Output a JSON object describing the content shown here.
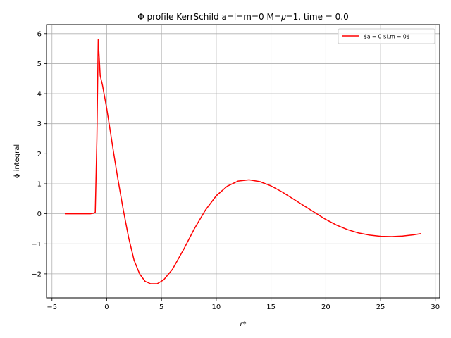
{
  "chart_data": {
    "type": "line",
    "title": "Φ profile KerrSchild a=l=m=0 M=𝜇=1, time = 0.0",
    "xlabel": "r*",
    "ylabel": "ϕ integral",
    "xlim": [
      -5.5,
      30.4
    ],
    "ylim": [
      -2.8,
      6.3
    ],
    "xticks": [
      -5,
      0,
      5,
      10,
      15,
      20,
      25,
      30
    ],
    "yticks": [
      -2,
      -1,
      0,
      1,
      2,
      3,
      4,
      5,
      6
    ],
    "grid": true,
    "legend_position": "top-right",
    "series": [
      {
        "name": "$a = 0 $l,m = 0$",
        "color": "#ff0000",
        "x": [
          -3.83,
          -3.0,
          -2.0,
          -1.5,
          -1.2,
          -1.05,
          -0.9,
          -0.78,
          -0.6,
          -0.4,
          -0.2,
          0.0,
          0.3,
          0.6,
          1.0,
          1.5,
          2.0,
          2.5,
          3.0,
          3.5,
          4.0,
          4.6,
          5.2,
          6.0,
          7.0,
          8.0,
          9.0,
          10.0,
          11.0,
          12.0,
          13.0,
          14.0,
          15.0,
          16.0,
          17.0,
          18.0,
          19.0,
          20.0,
          21.0,
          22.0,
          23.0,
          24.0,
          25.0,
          26.0,
          27.0,
          28.0,
          28.7
        ],
        "y": [
          0.0,
          0.0,
          0.0,
          0.0,
          0.02,
          0.05,
          2.5,
          5.8,
          4.6,
          4.3,
          3.9,
          3.5,
          2.8,
          2.1,
          1.2,
          0.15,
          -0.8,
          -1.55,
          -2.0,
          -2.25,
          -2.33,
          -2.33,
          -2.2,
          -1.85,
          -1.2,
          -0.5,
          0.12,
          0.6,
          0.92,
          1.09,
          1.13,
          1.07,
          0.93,
          0.73,
          0.5,
          0.27,
          0.04,
          -0.19,
          -0.38,
          -0.53,
          -0.64,
          -0.71,
          -0.75,
          -0.76,
          -0.74,
          -0.7,
          -0.66
        ]
      }
    ]
  }
}
